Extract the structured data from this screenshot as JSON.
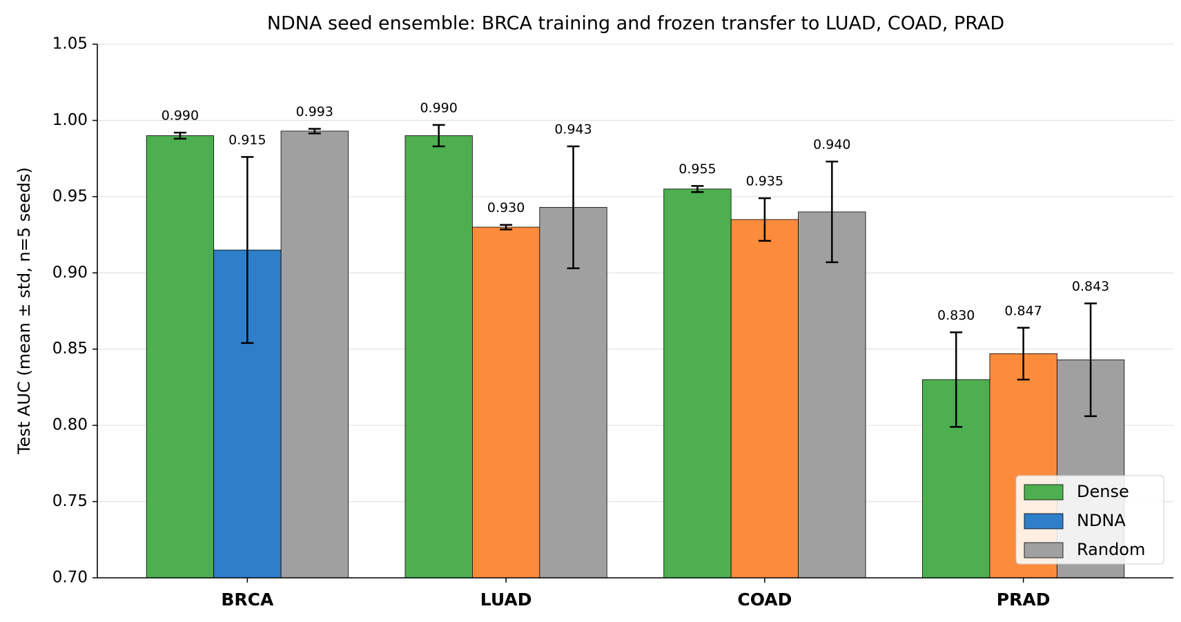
{
  "chart_data": {
    "type": "bar",
    "title": "NDNA seed ensemble: BRCA training and frozen transfer to LUAD, COAD, PRAD",
    "ylabel": "Test AUC (mean ± std, n=5 seeds)",
    "categories": [
      "BRCA",
      "LUAD",
      "COAD",
      "PRAD"
    ],
    "series": [
      {
        "name": "Dense",
        "color": "#4daf4f",
        "values": [
          0.99,
          0.99,
          0.955,
          0.83
        ],
        "value_labels": [
          "0.990",
          "0.990",
          "0.955",
          "0.830"
        ],
        "errors": [
          0.002,
          0.007,
          0.002,
          0.031
        ]
      },
      {
        "name": "NDNA",
        "color": "#2f7ec9",
        "colors": [
          "#2f7ec9",
          "#fd8b3c",
          "#fd8b3c",
          "#fd8b3c"
        ],
        "values": [
          0.915,
          0.93,
          0.935,
          0.847
        ],
        "value_labels": [
          "0.915",
          "0.930",
          "0.935",
          "0.847"
        ],
        "errors": [
          0.061,
          0.0015,
          0.014,
          0.017
        ]
      },
      {
        "name": "Random",
        "color": "#a0a0a0",
        "values": [
          0.993,
          0.943,
          0.94,
          0.843
        ],
        "value_labels": [
          "0.993",
          "0.943",
          "0.940",
          "0.843"
        ],
        "errors": [
          0.0015,
          0.04,
          0.033,
          0.037
        ]
      }
    ],
    "ylim": [
      0.7,
      1.05
    ],
    "yticks": [
      {
        "value": 0.7,
        "label": "0.70"
      },
      0.75,
      {
        "value": 0.8,
        "label": "0.80"
      },
      0.85,
      {
        "value": 0.9,
        "label": "0.90"
      },
      0.95,
      {
        "value": 1.0,
        "label": "1.00"
      },
      1.05
    ],
    "grid": true,
    "legend": "lower right"
  }
}
